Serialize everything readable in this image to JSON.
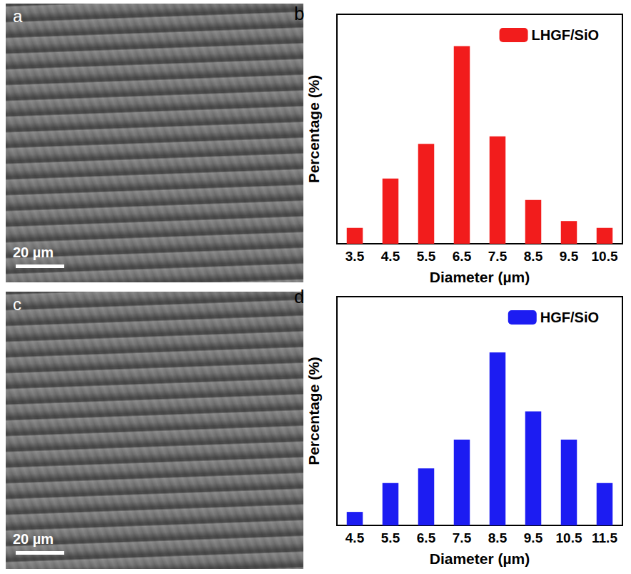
{
  "images": [
    {
      "panel": "a",
      "scale_bar": "20 µm"
    },
    {
      "panel": "c",
      "scale_bar": "20 µm"
    }
  ],
  "chart_data": [
    {
      "type": "bar",
      "panel": "b",
      "x_label": "Diameter (µm)",
      "y_label": "Percentage (%)",
      "categories": [
        "3.5",
        "4.5",
        "5.5",
        "6.5",
        "7.5",
        "8.5",
        "9.5",
        "10.5"
      ],
      "series": [
        {
          "name": "LHGF/SiO",
          "color": "#f21c1c",
          "values": [
            2.8,
            11.5,
            17.6,
            34.8,
            18.9,
            7.7,
            4.0,
            2.8
          ]
        }
      ],
      "ylim": [
        0,
        40.4
      ],
      "tick_labels": "x",
      "grid": false,
      "legend": "upper right"
    },
    {
      "type": "bar",
      "panel": "d",
      "x_label": "Diameter (µm)",
      "y_label": "Percentage (%)",
      "categories": [
        "4.5",
        "5.5",
        "6.5",
        "7.5",
        "8.5",
        "9.5",
        "10.5",
        "11.5"
      ],
      "series": [
        {
          "name": "HGF/SiO",
          "color": "#1c1cf2",
          "values": [
            2.2,
            6.9,
            9.3,
            14.0,
            28.2,
            18.6,
            14.0,
            6.9
          ]
        }
      ],
      "ylim": [
        0,
        37.3
      ],
      "tick_labels": "x",
      "grid": false,
      "legend": "upper right"
    }
  ]
}
